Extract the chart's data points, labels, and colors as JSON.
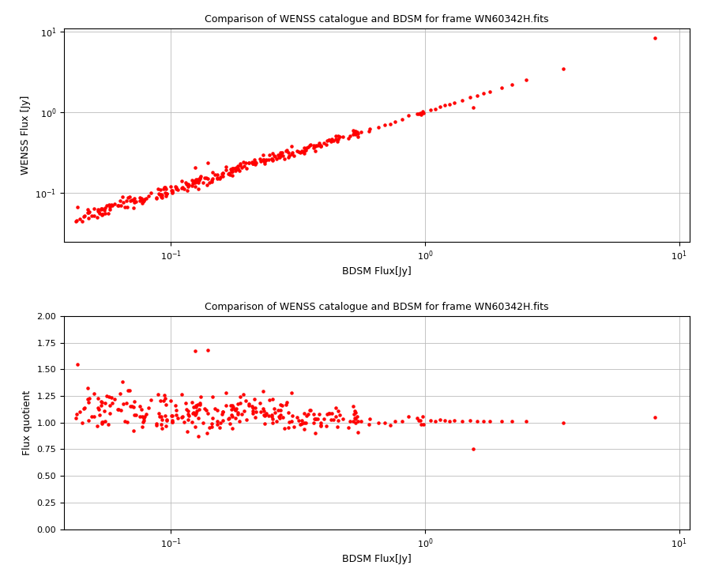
{
  "title": "Comparison of WENSS catalogue and BDSM for frame WN60342H.fits",
  "xlabel": "BDSM Flux[Jy]",
  "ylabel1": "WENSS Flux [Jy]",
  "ylabel2": "Flux quotient",
  "xlim1": [
    0.038,
    11
  ],
  "ylim1": [
    0.025,
    11
  ],
  "xlim2": [
    0.038,
    11
  ],
  "ylim2": [
    0.0,
    2.0
  ],
  "dot_color": "#ff0000",
  "dot_size": 5,
  "background_color": "#ffffff",
  "grid_color": "#bbbbbb"
}
